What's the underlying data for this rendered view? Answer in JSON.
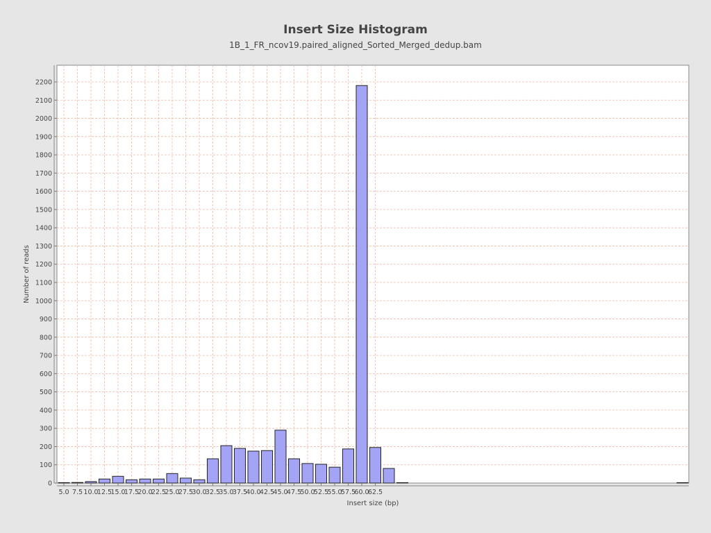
{
  "chart_data": {
    "type": "bar",
    "title": "Insert Size Histogram",
    "subtitle": "1B_1_FR_ncov19.paired_aligned_Sorted_Merged_dedup.bam",
    "xlabel": "Insert size (bp)",
    "ylabel": "Number of reads",
    "xlim": [
      4.25,
      62.75
    ],
    "ylim": [
      0,
      2300
    ],
    "x_ticks": [
      "5.0",
      "7.5",
      "10.0",
      "12.5",
      "15.0",
      "17.5",
      "20.0",
      "22.5",
      "25.0",
      "27.5",
      "30.0",
      "32.5",
      "35.0",
      "37.5",
      "40.0",
      "42.5",
      "45.0",
      "47.5",
      "50.0",
      "52.5",
      "55.0",
      "57.5",
      "60.0",
      "62.5"
    ],
    "y_ticks": [
      0,
      100,
      200,
      300,
      400,
      500,
      600,
      700,
      800,
      900,
      1000,
      1100,
      1200,
      1300,
      1400,
      1500,
      1600,
      1700,
      1800,
      1900,
      2000,
      2100,
      2200
    ],
    "grid": true,
    "bar_color": "#a4a4f6",
    "bars": [
      {
        "x": 5,
        "value": 0
      },
      {
        "x": 6,
        "value": 3
      },
      {
        "x": 7,
        "value": 8
      },
      {
        "x": 8,
        "value": 22
      },
      {
        "x": 9,
        "value": 37
      },
      {
        "x": 10,
        "value": 18
      },
      {
        "x": 11,
        "value": 22
      },
      {
        "x": 12,
        "value": 22
      },
      {
        "x": 13,
        "value": 52
      },
      {
        "x": 14,
        "value": 27
      },
      {
        "x": 15,
        "value": 18
      },
      {
        "x": 16,
        "value": 133
      },
      {
        "x": 17,
        "value": 205
      },
      {
        "x": 18,
        "value": 190
      },
      {
        "x": 19,
        "value": 175
      },
      {
        "x": 20,
        "value": 178
      },
      {
        "x": 21,
        "value": 290
      },
      {
        "x": 22,
        "value": 133
      },
      {
        "x": 23,
        "value": 107
      },
      {
        "x": 24,
        "value": 103
      },
      {
        "x": 25,
        "value": 87
      },
      {
        "x": 26,
        "value": 187
      },
      {
        "x": 27,
        "value": 2180
      },
      {
        "x": 28,
        "value": 195
      },
      {
        "x": 29,
        "value": 80
      },
      {
        "x": 30,
        "value": 0
      },
      {
        "x": 62,
        "value": 0
      }
    ]
  }
}
